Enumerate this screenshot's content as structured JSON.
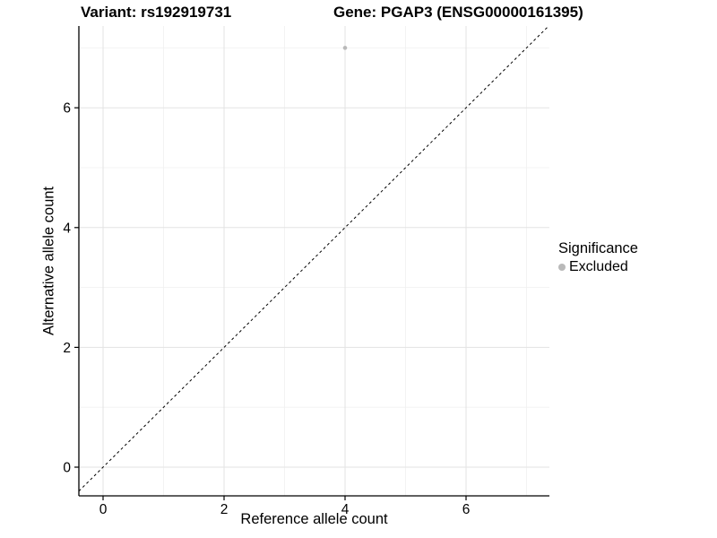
{
  "titles": {
    "variant": "Variant: rs192919731",
    "gene": "Gene: PGAP3 (ENSG00000161395)"
  },
  "chart_data": {
    "type": "scatter",
    "xlabel": "Reference allele count",
    "ylabel": "Alternative allele count",
    "x_major_ticks": [
      0,
      2,
      4,
      6
    ],
    "x_minor_ticks": [
      1,
      3,
      5,
      7
    ],
    "y_major_ticks": [
      0,
      2,
      4,
      6
    ],
    "y_minor_ticks": [
      1,
      3,
      5,
      7
    ],
    "xlim": [
      -0.4,
      7.38
    ],
    "ylim": [
      -0.48,
      7.37
    ],
    "grid": true,
    "points": [
      {
        "x": 4,
        "y": 7,
        "significance": "Excluded"
      }
    ],
    "reference_line": {
      "slope": 1,
      "intercept": 0,
      "style": "dashed"
    },
    "legend": {
      "title": "Significance",
      "position": "right",
      "items": [
        {
          "label": "Excluded",
          "color": "#b9b9b9"
        }
      ]
    },
    "colors": {
      "point": "#b9b9b9",
      "grid_major": "#e3e3e3",
      "grid_minor": "#f0f0f0",
      "axis_line": "#000000",
      "tick_mark": "#000000",
      "text": "#000000"
    }
  }
}
